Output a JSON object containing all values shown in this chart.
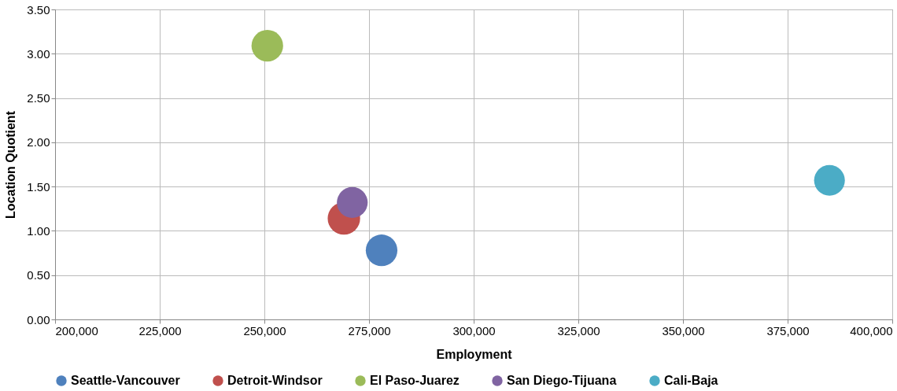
{
  "chart_data": {
    "type": "bubble",
    "xlabel": "Employment",
    "ylabel": "Location Quotient",
    "xlim": [
      200000,
      400000
    ],
    "xticks": [
      {
        "value": 200000,
        "label": "200,000"
      },
      {
        "value": 225000,
        "label": "225,000"
      },
      {
        "value": 250000,
        "label": "250,000"
      },
      {
        "value": 275000,
        "label": "275,000"
      },
      {
        "value": 300000,
        "label": "300,000"
      },
      {
        "value": 325000,
        "label": "325,000"
      },
      {
        "value": 350000,
        "label": "350,000"
      },
      {
        "value": 375000,
        "label": "375,000"
      },
      {
        "value": 400000,
        "label": "400,000"
      }
    ],
    "ylim": [
      0,
      3.5
    ],
    "yticks": [
      {
        "value": 0,
        "label": "0.00"
      },
      {
        "value": 0.5,
        "label": "0.50"
      },
      {
        "value": 1,
        "label": "1.00"
      },
      {
        "value": 1.5,
        "label": "1.50"
      },
      {
        "value": 2,
        "label": "2.00"
      },
      {
        "value": 2.5,
        "label": "2.50"
      },
      {
        "value": 3,
        "label": "3.00"
      },
      {
        "value": 3.5,
        "label": "3.50"
      }
    ],
    "grid": true,
    "legend": "bottom",
    "series": [
      {
        "name": "Seattle-Vancouver",
        "color": "#4f81bd",
        "x": [
          278000
        ],
        "values": [
          0.78
        ],
        "sizes": [
          0.95
        ]
      },
      {
        "name": "Detroit-Windsor",
        "color": "#c0504d",
        "x": [
          269000
        ],
        "values": [
          1.14
        ],
        "sizes": [
          1
        ]
      },
      {
        "name": "El Paso-Juarez",
        "color": "#9bbb59",
        "x": [
          250700
        ],
        "values": [
          3.09
        ],
        "sizes": [
          0.95
        ]
      },
      {
        "name": "San Diego-Tijuana",
        "color": "#8064a2",
        "x": [
          271000
        ],
        "values": [
          1.32
        ],
        "sizes": [
          0.9
        ]
      },
      {
        "name": "Cali-Baja",
        "color": "#4bacc6",
        "x": [
          385000
        ],
        "values": [
          1.57
        ],
        "sizes": [
          0.9
        ]
      }
    ]
  }
}
